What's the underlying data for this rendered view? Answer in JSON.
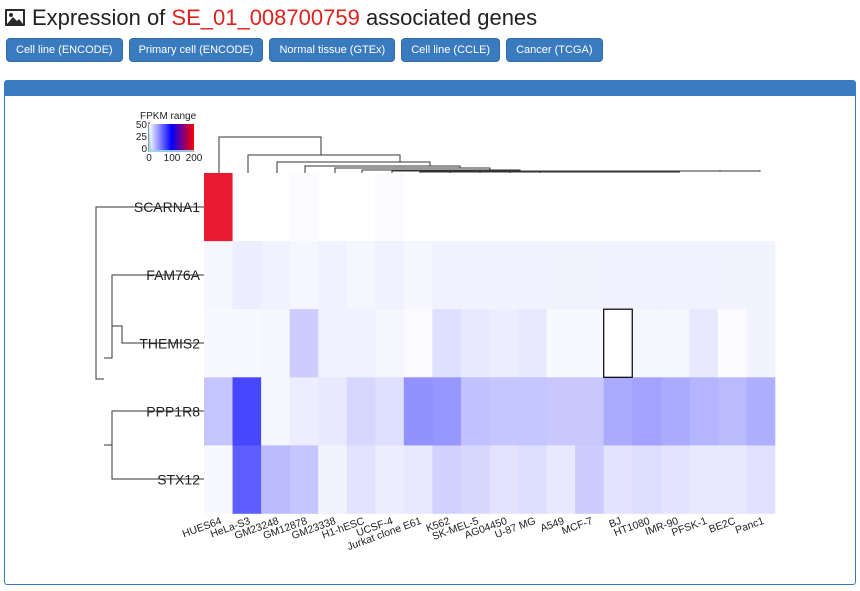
{
  "header": {
    "title_prefix": "Expression of ",
    "title_id": "SE_01_008700759",
    "title_suffix": " associated genes",
    "icon": "image-icon"
  },
  "buttons": [
    {
      "label": "Cell line (ENCODE)"
    },
    {
      "label": "Primary cell (ENCODE)"
    },
    {
      "label": "Normal tissue (GTEx)"
    },
    {
      "label": "Cell line (CCLE)"
    },
    {
      "label": "Cancer (TCGA)"
    }
  ],
  "colors": {
    "accent": "#3a7bbf",
    "title_id": "#e0211b",
    "scale_low": "#ffffff",
    "scale_mid": "#0000ff",
    "scale_high": "#ff0000"
  },
  "chart_data": {
    "type": "heatmap",
    "legend": {
      "title": "FPKM range",
      "min": 0,
      "mid": 100,
      "max": 200,
      "ticks": [
        "0",
        "100",
        "200"
      ],
      "hist_ticks": [
        "50",
        "25",
        "0"
      ],
      "placement": "top-left"
    },
    "rows": [
      "SCARNA1",
      "FAM76A",
      "THEMIS2",
      "PPP1R8",
      "STX12"
    ],
    "columns": [
      "HUES64",
      "HeLa-S3",
      "GM23248",
      "GM12878",
      "GM23338",
      "H1-hESC",
      "UCSF-4",
      "Jurkat clone E61",
      "K562",
      "SK-MEL-5",
      "AG04450",
      "U-87 MG",
      "A549",
      "MCF-7",
      "BJ",
      "HT1080",
      "IMR-90",
      "PFSK-1",
      "BE2C",
      "Panc1"
    ],
    "values": [
      [
        190,
        0,
        0,
        2,
        0,
        0,
        2,
        0,
        0,
        0,
        0,
        0,
        0,
        0,
        0,
        0,
        0,
        0,
        0,
        0
      ],
      [
        4,
        8,
        6,
        4,
        6,
        4,
        6,
        4,
        6,
        6,
        6,
        6,
        5,
        5,
        6,
        6,
        6,
        6,
        5,
        5
      ],
      [
        3,
        3,
        4,
        22,
        6,
        6,
        4,
        2,
        14,
        10,
        8,
        10,
        3,
        3,
        0,
        4,
        4,
        10,
        2,
        5
      ],
      [
        25,
        80,
        4,
        8,
        10,
        18,
        14,
        48,
        45,
        27,
        25,
        25,
        24,
        24,
        37,
        40,
        37,
        32,
        30,
        35
      ],
      [
        3,
        70,
        30,
        25,
        5,
        12,
        8,
        10,
        20,
        18,
        12,
        15,
        10,
        22,
        12,
        15,
        12,
        10,
        10,
        13
      ]
    ],
    "highlight": {
      "row": "THEMIS2",
      "column": "BJ"
    }
  }
}
